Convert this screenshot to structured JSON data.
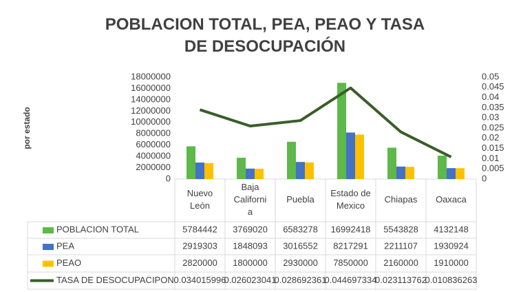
{
  "chart_data": {
    "type": "bar-line-table",
    "title": "POBLACION TOTAL, PEA, PEAO Y TASA DE DESOCUPACIÓN",
    "y_label": "por estado",
    "categories": [
      "Nuevo León",
      "Baja California",
      "Puebla",
      "Estado de Mexico",
      "Chiapas",
      "Oaxaca"
    ],
    "series": [
      {
        "name": "POBLACION TOTAL",
        "color": "#5fb84a",
        "type": "bar",
        "values": [
          5784442,
          3769020,
          6583278,
          16992418,
          5543828,
          4132148
        ]
      },
      {
        "name": "PEA",
        "color": "#4472c4",
        "type": "bar",
        "values": [
          2919303,
          1848093,
          3016552,
          8217291,
          2211107,
          1930924
        ]
      },
      {
        "name": "PEAO",
        "color": "#ffc000",
        "type": "bar",
        "values": [
          2820000,
          1800000,
          2930000,
          7850000,
          2160000,
          1910000
        ]
      },
      {
        "name": "TASA DE DESOCUPACIPON",
        "color": "#3a5e2a",
        "type": "line",
        "axis": "y2",
        "values": [
          0.034015996,
          0.026023041,
          0.028692361,
          0.044697334,
          0.023113762,
          0.010836263
        ]
      }
    ],
    "ylim": [
      0,
      18000000
    ],
    "yticks": [
      0,
      2000000,
      4000000,
      6000000,
      8000000,
      10000000,
      12000000,
      14000000,
      16000000,
      18000000
    ],
    "y2lim": [
      0,
      0.05
    ],
    "y2ticks": [
      0,
      0.005,
      0.01,
      0.015,
      0.02,
      0.025,
      0.03,
      0.035,
      0.04,
      0.045,
      0.05
    ]
  }
}
